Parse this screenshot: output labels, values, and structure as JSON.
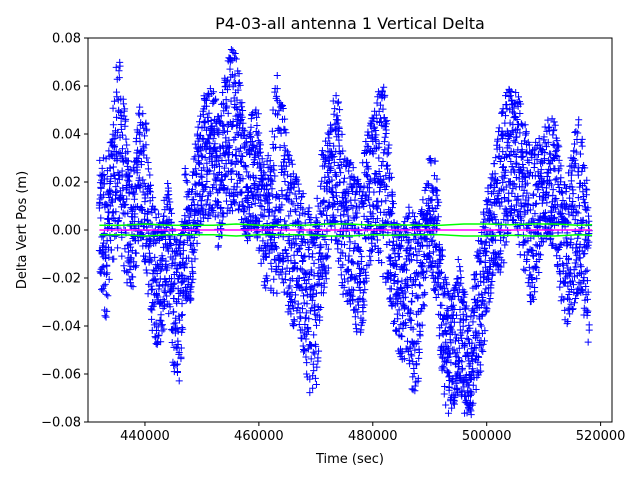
{
  "chart_data": {
    "type": "scatter",
    "title": "P4-03-all antenna 1 Vertical Delta",
    "xlabel": "Time (sec)",
    "ylabel": "Delta Vert Pos (m)",
    "xlim": [
      430000,
      522000
    ],
    "ylim": [
      -0.08,
      0.08
    ],
    "x_ticks": [
      {
        "value": 440000,
        "label": "440000"
      },
      {
        "value": 460000,
        "label": "460000"
      },
      {
        "value": 480000,
        "label": "480000"
      },
      {
        "value": 500000,
        "label": "500000"
      },
      {
        "value": 520000,
        "label": "520000"
      }
    ],
    "y_ticks": [
      {
        "value": -0.08,
        "label": "−0.08"
      },
      {
        "value": -0.06,
        "label": "−0.06"
      },
      {
        "value": -0.04,
        "label": "−0.04"
      },
      {
        "value": -0.02,
        "label": "−0.02"
      },
      {
        "value": 0.0,
        "label": "0.00"
      },
      {
        "value": 0.02,
        "label": "0.02"
      },
      {
        "value": 0.04,
        "label": "0.04"
      },
      {
        "value": 0.06,
        "label": "0.06"
      },
      {
        "value": 0.08,
        "label": "0.08"
      }
    ],
    "grid": false,
    "legend": false,
    "series": [
      {
        "marker": "plus",
        "color": "#0000ff",
        "x": [
          432000,
          433000,
          434000,
          435000,
          435500,
          436000,
          437000,
          438000,
          439000,
          440000,
          441000,
          442000,
          443000,
          444000,
          445000,
          446000,
          447000,
          448000,
          449000,
          450000,
          451000,
          452000,
          453000,
          454000,
          455000,
          456000,
          457000,
          458000,
          459000,
          460000,
          461000,
          462000,
          463000,
          464000,
          465000,
          466000,
          467000,
          468000,
          469000,
          470000,
          471000,
          472000,
          473000,
          474000,
          475000,
          476000,
          477000,
          478000,
          479000,
          480000,
          481000,
          482000,
          483000,
          484000,
          485000,
          486000,
          487000,
          488000,
          489000,
          490000,
          491000,
          492000,
          493000,
          494000,
          495000,
          496000,
          497000,
          498000,
          499000,
          500000,
          501000,
          502000,
          503000,
          504000,
          505000,
          506000,
          507000,
          508000,
          509000,
          510000,
          511000,
          512000,
          513000,
          514000,
          515000,
          516000,
          517000,
          518000
        ],
        "center": [
          0.002,
          -0.005,
          0.012,
          0.03,
          0.035,
          0.025,
          0.005,
          0.0,
          0.025,
          0.02,
          -0.01,
          -0.02,
          -0.02,
          -0.005,
          -0.03,
          -0.035,
          0.0,
          -0.005,
          0.015,
          0.03,
          0.03,
          0.035,
          0.02,
          0.035,
          0.04,
          0.045,
          0.03,
          0.015,
          0.025,
          0.02,
          0.0,
          0.005,
          0.02,
          0.02,
          0.0,
          -0.005,
          -0.01,
          -0.02,
          -0.03,
          -0.03,
          0.0,
          0.01,
          0.03,
          0.02,
          0.0,
          0.0,
          -0.01,
          -0.01,
          0.01,
          0.02,
          0.02,
          0.02,
          0.0,
          -0.02,
          -0.03,
          -0.02,
          -0.03,
          -0.03,
          -0.01,
          0.01,
          0.0,
          -0.03,
          -0.05,
          -0.05,
          -0.04,
          -0.05,
          -0.06,
          -0.04,
          -0.03,
          -0.01,
          0.0,
          0.01,
          0.02,
          0.03,
          0.03,
          0.02,
          0.01,
          0.0,
          0.01,
          0.02,
          0.02,
          0.02,
          0.0,
          -0.01,
          0.0,
          0.01,
          0.0,
          -0.02
        ],
        "spread": [
          0.027,
          0.038,
          0.025,
          0.042,
          0.037,
          0.04,
          0.03,
          0.026,
          0.027,
          0.035,
          0.03,
          0.028,
          0.028,
          0.025,
          0.032,
          0.03,
          0.03,
          0.025,
          0.025,
          0.025,
          0.028,
          0.028,
          0.03,
          0.03,
          0.038,
          0.032,
          0.028,
          0.02,
          0.028,
          0.028,
          0.025,
          0.03,
          0.048,
          0.04,
          0.035,
          0.035,
          0.03,
          0.035,
          0.04,
          0.04,
          0.032,
          0.03,
          0.03,
          0.035,
          0.03,
          0.03,
          0.033,
          0.035,
          0.032,
          0.028,
          0.038,
          0.04,
          0.033,
          0.025,
          0.03,
          0.03,
          0.04,
          0.033,
          0.025,
          0.022,
          0.03,
          0.028,
          0.028,
          0.025,
          0.028,
          0.028,
          0.02,
          0.03,
          0.03,
          0.028,
          0.025,
          0.03,
          0.034,
          0.031,
          0.028,
          0.034,
          0.032,
          0.035,
          0.03,
          0.025,
          0.028,
          0.025,
          0.03,
          0.03,
          0.035,
          0.038,
          0.035,
          0.03
        ]
      },
      {
        "style": "line",
        "color": "#00ff00",
        "x": [
          432000,
          436000,
          440000,
          444000,
          448000,
          452000,
          456000,
          460000,
          464000,
          468000,
          472000,
          476000,
          480000,
          484000,
          488000,
          492000,
          496000,
          500000,
          504000,
          508000,
          512000,
          516000,
          518500
        ],
        "values": [
          0.002,
          0.002,
          0.0025,
          0.002,
          0.002,
          0.002,
          0.0025,
          0.002,
          0.002,
          0.002,
          0.0025,
          0.0025,
          0.002,
          0.0022,
          0.002,
          0.002,
          0.0025,
          0.0025,
          0.0022,
          0.0025,
          0.0025,
          0.002,
          0.0022
        ]
      },
      {
        "style": "line",
        "color": "#00ff00",
        "x": [
          432000,
          436000,
          440000,
          444000,
          448000,
          452000,
          456000,
          460000,
          464000,
          468000,
          472000,
          476000,
          480000,
          484000,
          488000,
          492000,
          496000,
          500000,
          504000,
          508000,
          512000,
          516000,
          518500
        ],
        "values": [
          -0.002,
          -0.002,
          -0.0025,
          -0.002,
          -0.002,
          -0.002,
          -0.0025,
          -0.002,
          -0.002,
          -0.002,
          -0.0025,
          -0.0025,
          -0.002,
          -0.0022,
          -0.002,
          -0.002,
          -0.0025,
          -0.0025,
          -0.0022,
          -0.0025,
          -0.0025,
          -0.002,
          -0.0022
        ]
      },
      {
        "style": "line",
        "color": "#ff00ff",
        "x": [
          432000,
          518500
        ],
        "values": [
          0.0,
          0.0
        ]
      }
    ]
  }
}
